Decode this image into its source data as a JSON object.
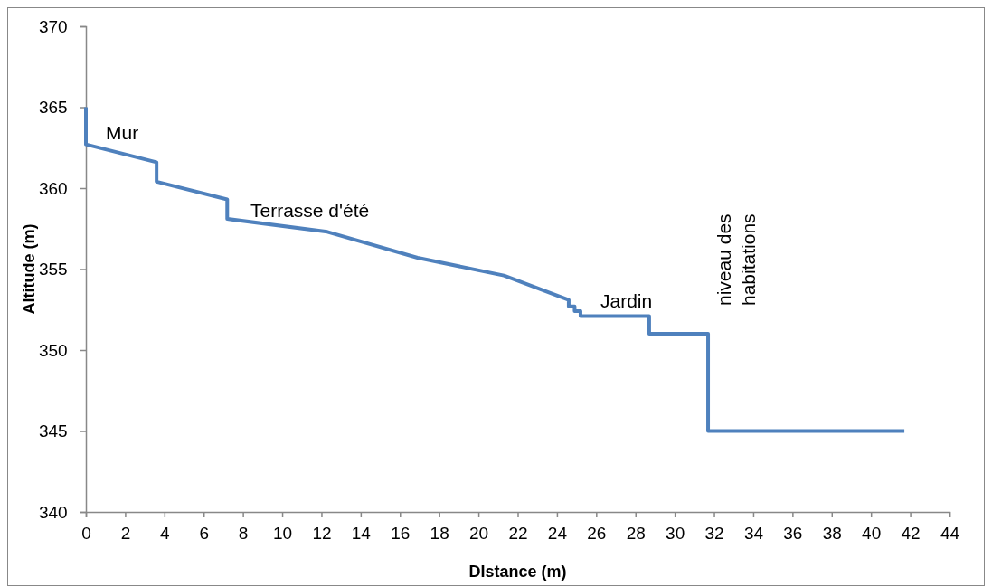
{
  "chart_data": {
    "type": "line",
    "xlabel": "DIstance (m)",
    "ylabel": "Altitude (m)",
    "xlim": [
      0,
      44
    ],
    "xticks": [
      0,
      2,
      4,
      6,
      8,
      10,
      12,
      14,
      16,
      18,
      20,
      22,
      24,
      26,
      28,
      30,
      32,
      34,
      36,
      38,
      40,
      42,
      44
    ],
    "ylim": [
      340,
      370
    ],
    "yticks": [
      340,
      345,
      350,
      355,
      360,
      365,
      370
    ],
    "grid": false,
    "marker": "none",
    "line_style": "solid",
    "series": [
      {
        "color": "#4f81bd",
        "x": [
          0,
          0,
          3.6,
          3.6,
          7.2,
          7.2,
          12.3,
          16.9,
          21.3,
          24.6,
          24.6,
          24.9,
          24.9,
          25.2,
          25.2,
          28.7,
          28.7,
          31.7,
          31.7,
          41.7
        ],
        "values": [
          365,
          362.7,
          361.6,
          360.4,
          359.3,
          358.1,
          357.3,
          355.7,
          354.6,
          353.1,
          352.7,
          352.7,
          352.4,
          352.4,
          352.1,
          352.1,
          351,
          351,
          345,
          345
        ]
      }
    ],
    "annotations": [
      "Mur",
      "Terrasse d'été",
      "Jardin",
      "niveau des\nhabitations"
    ]
  }
}
